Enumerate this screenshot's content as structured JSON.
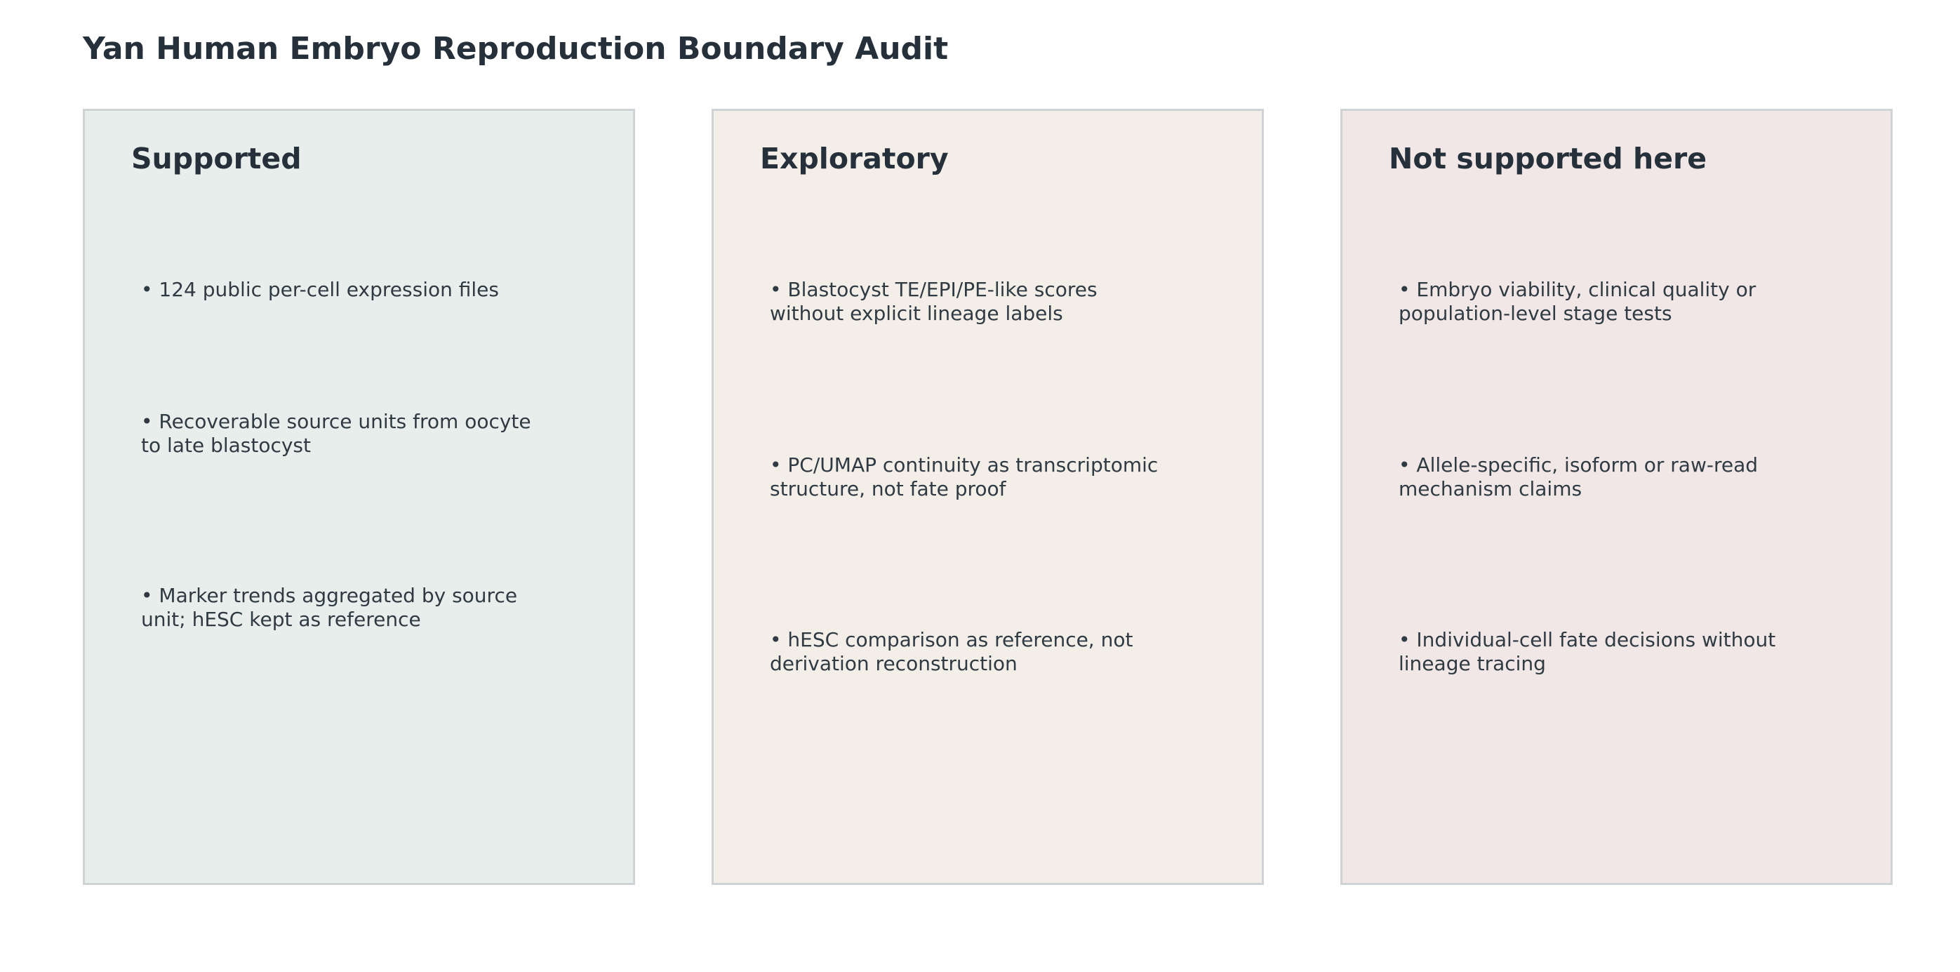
{
  "title": "Yan Human Embryo Reproduction Boundary Audit",
  "colors": {
    "supported_bg": "#e8eeec",
    "exploratory_bg": "#f3eee8",
    "not_supported_bg": "#f1e7e6",
    "border": "#cfd3d6",
    "text": "#25303a"
  },
  "panels": [
    {
      "heading": "Supported",
      "items": [
        "• 124 public per-cell expression files",
        "• Recoverable source units from oocyte to late blastocyst",
        "• Marker trends aggregated by source unit; hESC kept as reference"
      ]
    },
    {
      "heading": "Exploratory",
      "items": [
        "• Blastocyst TE/EPI/PE-like scores without explicit lineage labels",
        "• PC/UMAP continuity as transcriptomic structure, not fate proof",
        "• hESC comparison as reference, not derivation reconstruction"
      ]
    },
    {
      "heading": "Not supported here",
      "items": [
        "• Embryo viability, clinical quality or population-level stage tests",
        "• Allele-specific, isoform or raw-read mechanism claims",
        "• Individual-cell fate decisions without lineage tracing"
      ]
    }
  ]
}
